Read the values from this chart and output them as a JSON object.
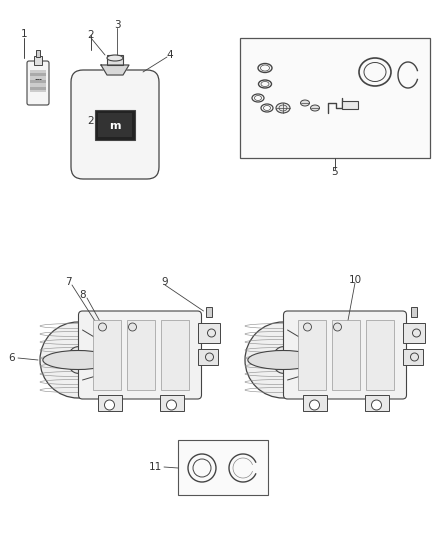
{
  "bg_color": "#ffffff",
  "line_color": "#444444",
  "label_color": "#333333",
  "fig_width": 4.38,
  "fig_height": 5.33,
  "dpi": 100
}
